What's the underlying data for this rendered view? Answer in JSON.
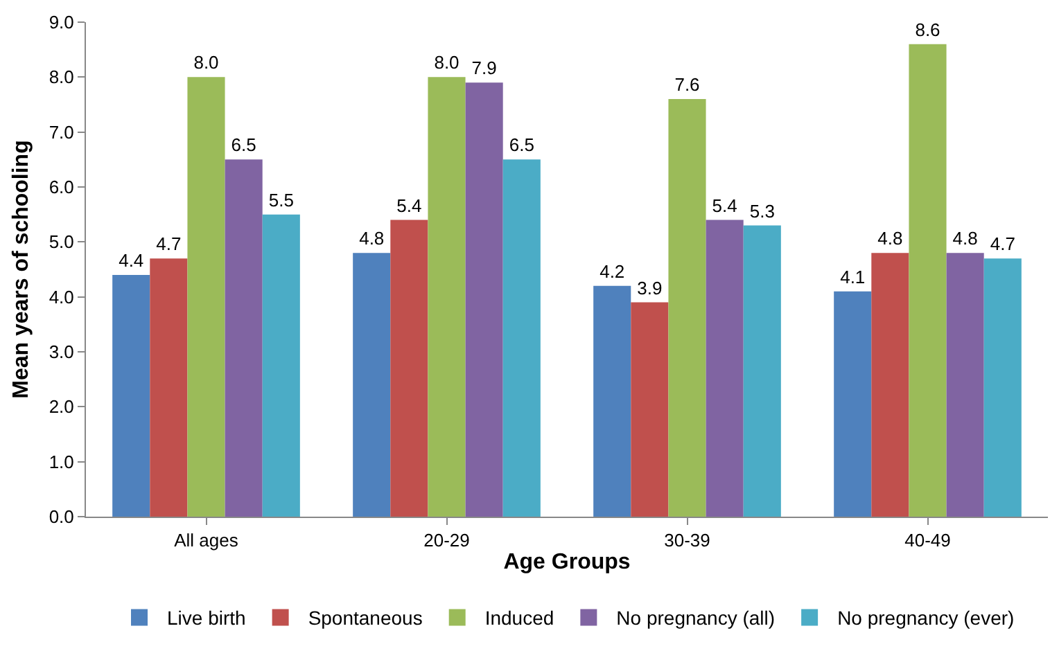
{
  "chart_data": {
    "type": "bar",
    "xlabel": "Age Groups",
    "ylabel": "Mean years of schooling",
    "categories": [
      "All ages",
      "20-29",
      "30-39",
      "40-49"
    ],
    "series": [
      {
        "name": "Live birth",
        "color": "#4f81bd",
        "values": [
          4.4,
          4.8,
          4.2,
          4.1
        ],
        "value_labels": [
          "4.4",
          "4.8",
          "4.2",
          "4.1"
        ]
      },
      {
        "name": "Spontaneous",
        "color": "#c0504d",
        "values": [
          4.7,
          5.4,
          3.9,
          4.8
        ],
        "value_labels": [
          "4.7",
          "5.4",
          "3.9",
          "4.8"
        ]
      },
      {
        "name": "Induced",
        "color": "#9bbb59",
        "values": [
          8.0,
          8.0,
          7.6,
          8.6
        ],
        "value_labels": [
          "8.0",
          "8.0",
          "7.6",
          "8.6"
        ]
      },
      {
        "name": "No pregnancy (all)",
        "color": "#8064a2",
        "values": [
          6.5,
          7.9,
          5.4,
          4.8
        ],
        "value_labels": [
          "6.5",
          "7.9",
          "5.4",
          "4.8"
        ]
      },
      {
        "name": "No pregnancy (ever)",
        "color": "#4bacc6",
        "values": [
          5.5,
          6.5,
          5.3,
          4.7
        ],
        "value_labels": [
          "5.5",
          "6.5",
          "5.3",
          "4.7"
        ]
      }
    ],
    "ylim": [
      0,
      9
    ],
    "yticks": [
      {
        "value": 0,
        "label": "0.0"
      },
      {
        "value": 1,
        "label": "1.0"
      },
      {
        "value": 2,
        "label": "2.0"
      },
      {
        "value": 3,
        "label": "3.0"
      },
      {
        "value": 4,
        "label": "4.0"
      },
      {
        "value": 5,
        "label": "5.0"
      },
      {
        "value": 6,
        "label": "6.0"
      },
      {
        "value": 7,
        "label": "7.0"
      },
      {
        "value": 8,
        "label": "8.0"
      },
      {
        "value": 9,
        "label": "9.0"
      }
    ],
    "grid": false,
    "legend": "bottom"
  }
}
